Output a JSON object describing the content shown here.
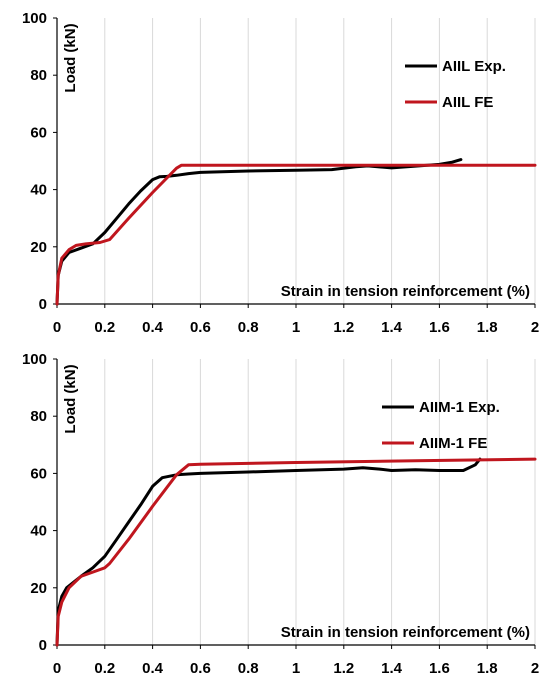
{
  "chart_data": [
    {
      "type": "line",
      "title": "",
      "xlabel": "Strain in tension reinforcement (%)",
      "ylabel": "Load (kN)",
      "xlim": [
        0,
        2
      ],
      "ylim": [
        0,
        100
      ],
      "xticks": [
        "0",
        "0.2",
        "0.4",
        "0.6",
        "0.8",
        "1",
        "1.2",
        "1.4",
        "1.6",
        "1.8",
        "2"
      ],
      "yticks": [
        "0",
        "20",
        "40",
        "60",
        "80",
        "100"
      ],
      "grid": true,
      "legend_position": "top-right",
      "series": [
        {
          "name": "AIIL Exp.",
          "color": "#000000",
          "x": [
            0,
            0.005,
            0.02,
            0.05,
            0.1,
            0.15,
            0.2,
            0.25,
            0.3,
            0.35,
            0.4,
            0.43,
            0.46,
            0.5,
            0.55,
            0.6,
            0.8,
            1.0,
            1.15,
            1.25,
            1.3,
            1.4,
            1.5,
            1.6,
            1.65,
            1.69
          ],
          "y": [
            0,
            10,
            15,
            18,
            19.5,
            21,
            25,
            30,
            35,
            39.5,
            43.5,
            44.5,
            44.6,
            45,
            45.6,
            46,
            46.5,
            46.8,
            47,
            48,
            48.3,
            47.6,
            48.2,
            48.8,
            49.5,
            50.5
          ]
        },
        {
          "name": "AIIL FE",
          "color": "#c0161e",
          "x": [
            0,
            0.005,
            0.02,
            0.05,
            0.08,
            0.12,
            0.18,
            0.22,
            0.3,
            0.4,
            0.5,
            0.52,
            0.6,
            1.0,
            1.5,
            2.0
          ],
          "y": [
            0,
            10,
            16,
            19,
            20.5,
            21,
            21.5,
            22.5,
            30,
            39,
            47.5,
            48.5,
            48.5,
            48.5,
            48.5,
            48.5
          ]
        }
      ]
    },
    {
      "type": "line",
      "title": "",
      "xlabel": "Strain in tension reinforcement (%)",
      "ylabel": "Load (kN)",
      "xlim": [
        0,
        2
      ],
      "ylim": [
        0,
        100
      ],
      "xticks": [
        "0",
        "0.2",
        "0.4",
        "0.6",
        "0.8",
        "1",
        "1.2",
        "1.4",
        "1.6",
        "1.8",
        "2"
      ],
      "yticks": [
        "0",
        "20",
        "40",
        "60",
        "80",
        "100"
      ],
      "grid": true,
      "legend_position": "top-right",
      "series": [
        {
          "name": "AIIM-1 Exp.",
          "color": "#000000",
          "x": [
            0,
            0.005,
            0.02,
            0.04,
            0.1,
            0.15,
            0.2,
            0.25,
            0.3,
            0.35,
            0.4,
            0.44,
            0.5,
            0.55,
            0.6,
            0.8,
            1.0,
            1.2,
            1.28,
            1.35,
            1.4,
            1.5,
            1.6,
            1.7,
            1.75,
            1.77
          ],
          "y": [
            0,
            12,
            17,
            20,
            24,
            27,
            31,
            37,
            43,
            49,
            55.5,
            58.5,
            59.5,
            59.8,
            60,
            60.5,
            61,
            61.5,
            62,
            61.5,
            61,
            61.3,
            61,
            61,
            63,
            65
          ]
        },
        {
          "name": "AIIM-1 FE",
          "color": "#c0161e",
          "x": [
            0,
            0.005,
            0.02,
            0.05,
            0.1,
            0.15,
            0.2,
            0.22,
            0.3,
            0.4,
            0.5,
            0.55,
            0.6,
            1.0,
            1.5,
            2.0
          ],
          "y": [
            0,
            10,
            15,
            20,
            24,
            25.5,
            27,
            28.5,
            37,
            48.5,
            59.5,
            63,
            63.2,
            63.8,
            64.4,
            65
          ]
        }
      ]
    }
  ]
}
